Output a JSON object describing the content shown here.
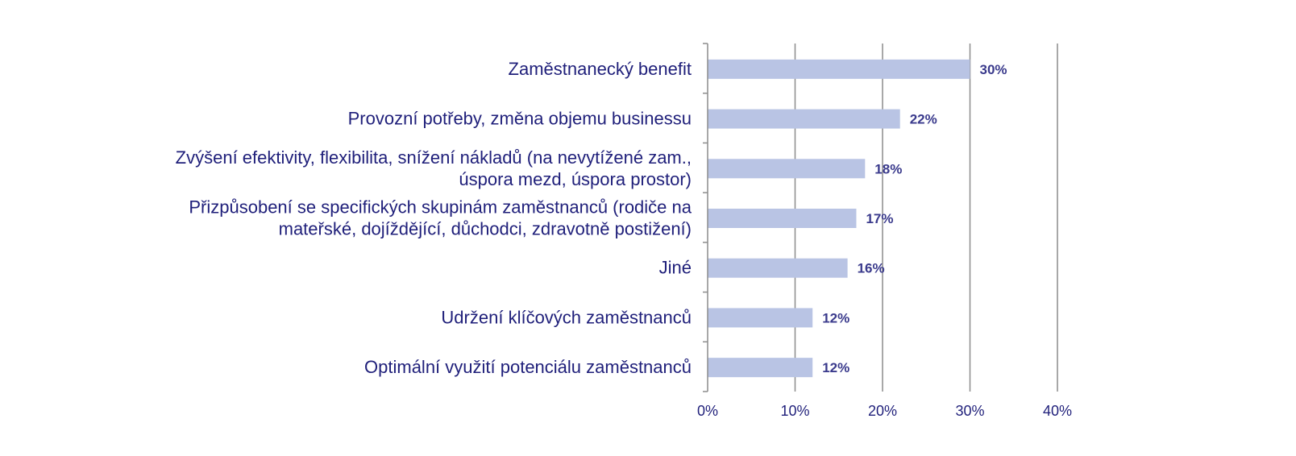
{
  "chart_data": {
    "type": "bar",
    "orientation": "horizontal",
    "categories": [
      [
        "Zaměstnanecký benefit"
      ],
      [
        "Provozní potřeby, změna objemu businessu"
      ],
      [
        "Zvýšení efektivity, flexibilita, snížení nákladů (na nevytížené zam.,",
        "úspora mezd, úspora prostor)"
      ],
      [
        "Přizpůsobení se specifických skupinám zaměstnanců (rodiče na",
        "mateřské, dojíždějící, důchodci, zdravotně postižení)"
      ],
      [
        "Jiné"
      ],
      [
        "Udržení klíčových zaměstnanců"
      ],
      [
        "Optimální využití potenciálu zaměstnanců"
      ]
    ],
    "values": [
      30,
      22,
      18,
      17,
      16,
      12,
      12
    ],
    "data_labels": [
      "30%",
      "22%",
      "18%",
      "17%",
      "16%",
      "12%",
      "12%"
    ],
    "xlim": [
      0,
      40
    ],
    "x_ticks": [
      0,
      10,
      20,
      30,
      40
    ],
    "x_tick_labels": [
      "0%",
      "10%",
      "20%",
      "30%",
      "40%"
    ],
    "grid": true,
    "legend": "none",
    "colors": {
      "bar": "#b9c4e4",
      "label": "#1f1f7a",
      "data_label": "#3a3a8c",
      "grid": "#8c8c8c",
      "axis": "#8c8c8c"
    }
  }
}
